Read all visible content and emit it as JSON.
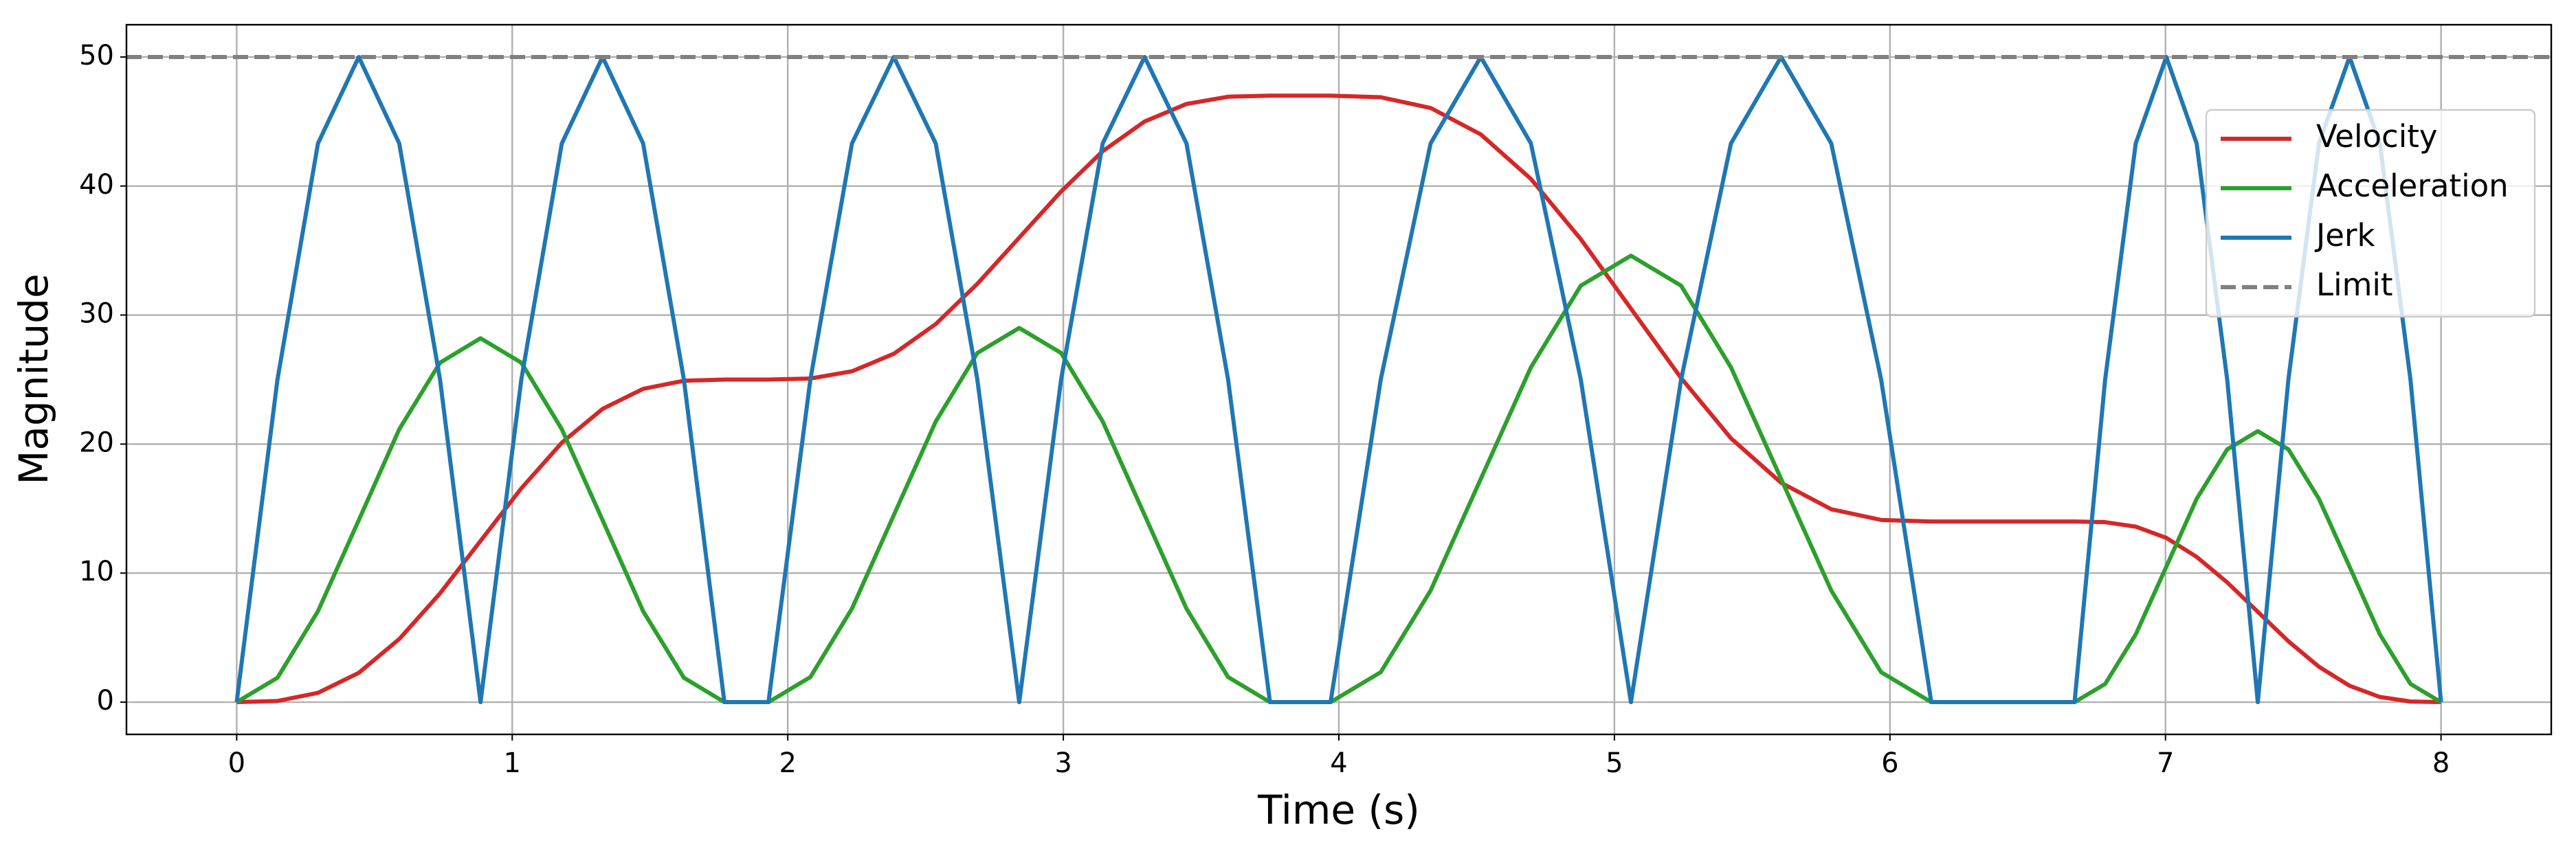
{
  "chart_data": {
    "type": "line",
    "xlabel": "Time (s)",
    "ylabel": "Magnitude",
    "x": [
      0,
      0.148,
      0.295,
      0.443,
      0.59,
      0.738,
      0.885,
      1.033,
      1.18,
      1.328,
      1.475,
      1.623,
      1.77,
      1.93,
      2.082,
      2.233,
      2.385,
      2.537,
      2.688,
      2.84,
      2.992,
      3.143,
      3.295,
      3.447,
      3.598,
      3.75,
      3.97,
      4.152,
      4.333,
      4.515,
      4.697,
      4.878,
      5.06,
      5.242,
      5.423,
      5.605,
      5.787,
      5.968,
      6.15,
      6.67,
      6.781,
      6.892,
      7.003,
      7.113,
      7.224,
      7.335,
      7.446,
      7.557,
      7.668,
      7.778,
      7.889,
      8
    ],
    "series": [
      {
        "name": "Velocity",
        "color": "#d62728",
        "values": [
          0,
          0.09,
          0.72,
          2.27,
          4.89,
          8.43,
          12.5,
          16.57,
          20.11,
          22.73,
          24.28,
          24.91,
          25,
          25,
          25.08,
          25.64,
          27.0,
          29.3,
          32.42,
          36,
          39.58,
          42.7,
          45.0,
          46.36,
          46.92,
          47,
          47,
          46.88,
          46.05,
          44.0,
          40.55,
          35.88,
          30.5,
          25.12,
          20.45,
          17.0,
          14.95,
          14.12,
          14,
          14,
          13.95,
          13.6,
          12.73,
          11.26,
          9.28,
          7,
          4.72,
          2.74,
          1.27,
          0.4,
          0.05,
          0
        ]
      },
      {
        "name": "Acceleration",
        "color": "#2ca02c",
        "values": [
          0,
          1.89,
          7.05,
          14.1,
          21.15,
          26.31,
          28.2,
          26.31,
          21.15,
          14.1,
          7.05,
          1.89,
          0,
          0,
          1.94,
          7.25,
          14.5,
          21.75,
          27.06,
          29,
          27.06,
          21.75,
          14.5,
          7.25,
          1.94,
          0,
          0,
          2.32,
          8.65,
          17.3,
          25.95,
          32.28,
          34.6,
          32.28,
          25.95,
          17.3,
          8.65,
          2.32,
          0,
          0,
          1.41,
          5.25,
          10.5,
          15.75,
          19.59,
          21,
          19.59,
          15.75,
          10.5,
          5.25,
          1.41,
          0
        ]
      },
      {
        "name": "Jerk",
        "color": "#1f77b4",
        "values": [
          0,
          25,
          43.3,
          50,
          43.3,
          25,
          0,
          25,
          43.3,
          50,
          43.3,
          25,
          0,
          0,
          25,
          43.3,
          50,
          43.3,
          25,
          0,
          25,
          43.3,
          50,
          43.3,
          25,
          0,
          0,
          25,
          43.3,
          50,
          43.3,
          25,
          0,
          25,
          43.3,
          50,
          43.3,
          25,
          0,
          0,
          25,
          43.3,
          50,
          43.3,
          25,
          0,
          25,
          43.3,
          50,
          43.3,
          25,
          0
        ]
      }
    ],
    "limit": {
      "name": "Limit",
      "value": 50,
      "color": "#808080"
    },
    "xlim": [
      -0.4,
      8.4
    ],
    "ylim": [
      -2.5,
      52.5
    ],
    "xticks": [
      0,
      1,
      2,
      3,
      4,
      5,
      6,
      7,
      8
    ],
    "yticks": [
      0,
      10,
      20,
      30,
      40,
      50
    ],
    "grid": true,
    "legend": "upper right"
  }
}
